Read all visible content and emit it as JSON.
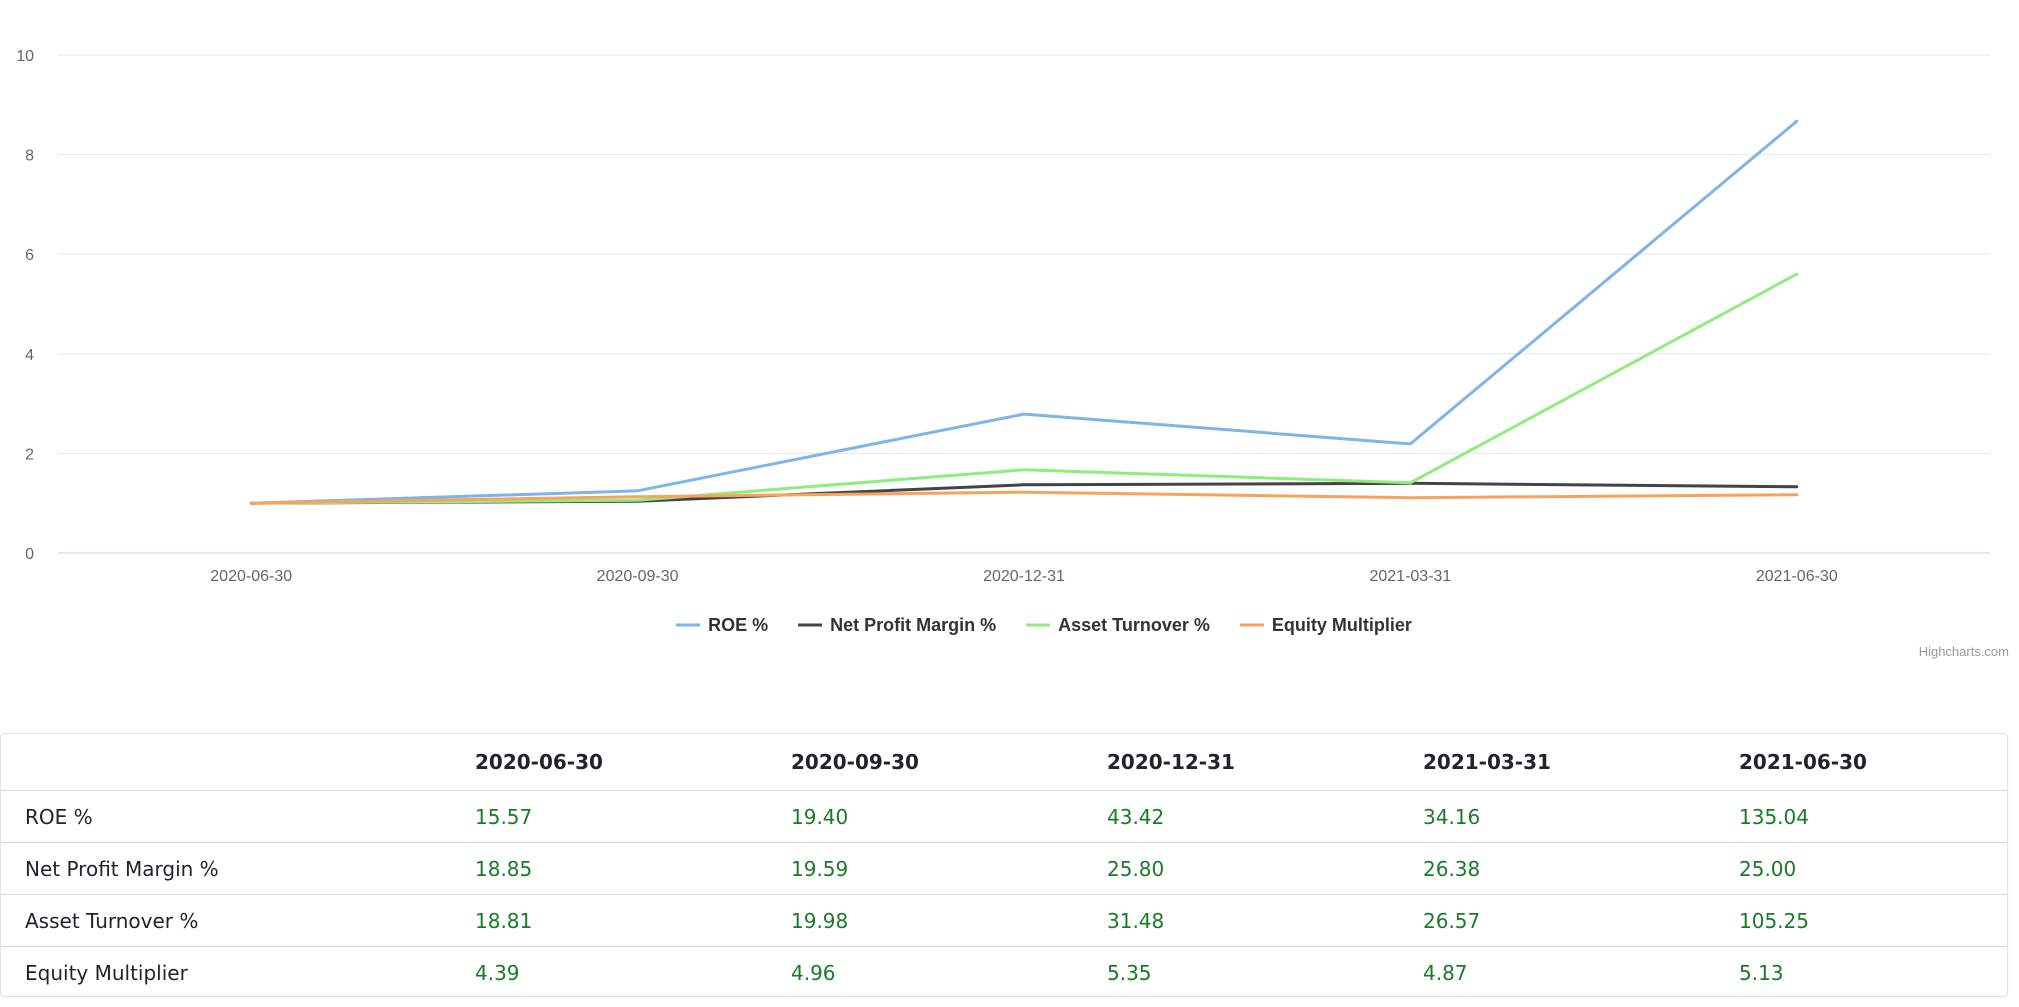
{
  "chart_data": {
    "type": "line",
    "categories": [
      "2020-06-30",
      "2020-09-30",
      "2020-12-31",
      "2021-03-31",
      "2021-06-30"
    ],
    "ylim": [
      0,
      10
    ],
    "yticks": [
      "0",
      "2",
      "4",
      "6",
      "8",
      "10"
    ],
    "grid": true,
    "legend_position": "bottom-center",
    "series": [
      {
        "name": "ROE %",
        "color": "#7cb5ec",
        "values": [
          1.0,
          1.25,
          2.79,
          2.19,
          8.67
        ]
      },
      {
        "name": "Net Profit Margin %",
        "color": "#434348",
        "values": [
          1.0,
          1.04,
          1.37,
          1.4,
          1.33
        ]
      },
      {
        "name": "Asset Turnover %",
        "color": "#90ed7d",
        "values": [
          1.0,
          1.06,
          1.67,
          1.41,
          5.6
        ]
      },
      {
        "name": "Equity Multiplier",
        "color": "#f7a35c",
        "values": [
          1.0,
          1.13,
          1.22,
          1.11,
          1.17
        ]
      }
    ],
    "credits": "Highcharts.com"
  },
  "table": {
    "headers": [
      "",
      "2020-06-30",
      "2020-09-30",
      "2020-12-31",
      "2021-03-31",
      "2021-06-30"
    ],
    "rows": [
      {
        "label": "ROE %",
        "values": [
          "15.57",
          "19.40",
          "43.42",
          "34.16",
          "135.04"
        ]
      },
      {
        "label": "Net Profit Margin %",
        "values": [
          "18.85",
          "19.59",
          "25.80",
          "26.38",
          "25.00"
        ]
      },
      {
        "label": "Asset Turnover %",
        "values": [
          "18.81",
          "19.98",
          "31.48",
          "26.57",
          "105.25"
        ]
      },
      {
        "label": "Equity Multiplier",
        "values": [
          "4.39",
          "4.96",
          "5.35",
          "4.87",
          "5.13"
        ]
      }
    ]
  }
}
